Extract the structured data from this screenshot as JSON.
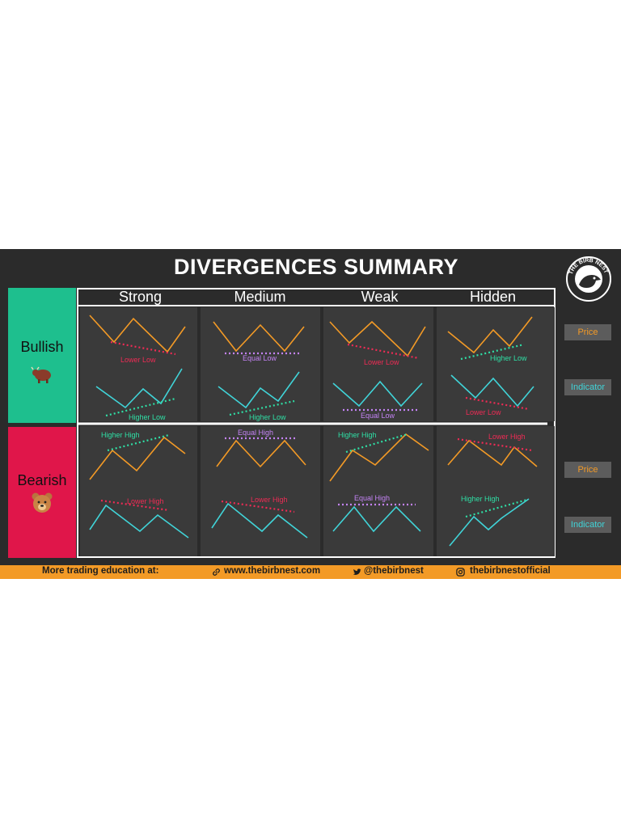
{
  "title": "DIVERGENCES SUMMARY",
  "logo_text": "THE BIRB NEST",
  "columns": [
    "Strong",
    "Medium",
    "Weak",
    "Hidden"
  ],
  "rows": [
    {
      "label": "Bullish",
      "icon": "bull-icon"
    },
    {
      "label": "Bearish",
      "icon": "bear-icon"
    }
  ],
  "side_labels": [
    "Price",
    "Indicator",
    "Price",
    "Indicator"
  ],
  "cells": {
    "bullish": [
      {
        "price_label": "Lower Low",
        "indicator_label": "Higher Low"
      },
      {
        "price_label": "Equal Low",
        "indicator_label": "Higher Low"
      },
      {
        "price_label": "Lower Low",
        "indicator_label": "Equal Low"
      },
      {
        "price_label": "Higher Low",
        "indicator_label": "Lower Low"
      }
    ],
    "bearish": [
      {
        "price_label": "Higher High",
        "indicator_label": "Lower High"
      },
      {
        "price_label": "Equal High",
        "indicator_label": "Lower High"
      },
      {
        "price_label": "Higher High",
        "indicator_label": "Equal High"
      },
      {
        "price_label": "Lower High",
        "indicator_label": "Higher High"
      }
    ]
  },
  "footer": {
    "lead": "More trading education at:",
    "website": "www.thebirbnest.com",
    "twitter": "@thebirbnest",
    "instagram": "thebirbnestofficial"
  },
  "colors": {
    "panel": "#2b2b2b",
    "cell": "#3a3a3a",
    "bullish": "#1ebf8e",
    "bearish": "#e0164a",
    "price_line": "#f39a26",
    "indicator_line": "#40d4d8",
    "higher": "#2fe0a6",
    "lower": "#ef2b55",
    "equal": "#c483f5",
    "footer": "#f39a26"
  }
}
